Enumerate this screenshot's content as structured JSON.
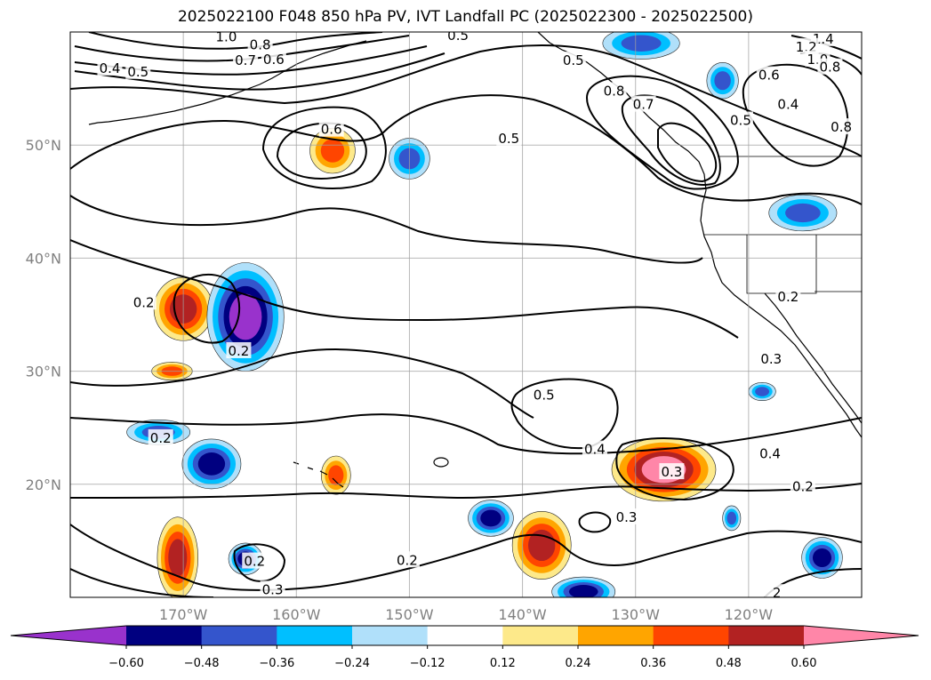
{
  "title": "2025022100 F048 850 hPa PV, IVT Landfall PC (2025022300 - 2025022500)",
  "map": {
    "lon_range": [
      -180,
      -110
    ],
    "lat_range": [
      10,
      60
    ],
    "lon_ticks": [
      {
        "lon": -170,
        "label": "170°W"
      },
      {
        "lon": -160,
        "label": "160°W"
      },
      {
        "lon": -150,
        "label": "150°W"
      },
      {
        "lon": -140,
        "label": "140°W"
      },
      {
        "lon": -130,
        "label": "130°W"
      },
      {
        "lon": -120,
        "label": "120°W"
      }
    ],
    "lat_ticks": [
      {
        "lat": 50,
        "label": "50°N"
      },
      {
        "lat": 40,
        "label": "40°N"
      },
      {
        "lat": 30,
        "label": "30°N"
      },
      {
        "lat": 20,
        "label": "20°N"
      }
    ],
    "gridlines": true
  },
  "colorbar": {
    "levels": [
      "-0.60",
      "-0.48",
      "-0.36",
      "-0.24",
      "-0.12",
      "0.12",
      "0.24",
      "0.36",
      "0.48",
      "0.60"
    ],
    "colors": [
      "#9932cc",
      "#000080",
      "#3455cc",
      "#00bfff",
      "#b0e0fa",
      "#ffffff",
      "#fde98a",
      "#ffa500",
      "#ff4500",
      "#b22222",
      "#ff86a8"
    ],
    "extend": "both"
  },
  "contour_labels": [
    {
      "text": "1.0",
      "lon": -166.2,
      "lat": 59.5
    },
    {
      "text": "0.8",
      "lon": -163.2,
      "lat": 58.8
    },
    {
      "text": "0.7",
      "lon": -164.5,
      "lat": 57.4
    },
    {
      "text": "0.6",
      "lon": -162.0,
      "lat": 57.5
    },
    {
      "text": "0.4",
      "lon": -176.5,
      "lat": 56.7
    },
    {
      "text": "0.5",
      "lon": -174.0,
      "lat": 56.4
    },
    {
      "text": "0.5",
      "lon": -145.7,
      "lat": 59.6
    },
    {
      "text": "0.6",
      "lon": -156.9,
      "lat": 51.3
    },
    {
      "text": "0.5",
      "lon": -135.5,
      "lat": 57.4
    },
    {
      "text": "0.8",
      "lon": -131.9,
      "lat": 54.7
    },
    {
      "text": "0.7",
      "lon": -129.3,
      "lat": 53.5
    },
    {
      "text": "0.5",
      "lon": -141.2,
      "lat": 50.5
    },
    {
      "text": "1.4",
      "lon": -113.4,
      "lat": 59.3
    },
    {
      "text": "1.2",
      "lon": -114.9,
      "lat": 58.6
    },
    {
      "text": "1.0",
      "lon": -113.9,
      "lat": 57.5
    },
    {
      "text": "0.8",
      "lon": -112.8,
      "lat": 56.8
    },
    {
      "text": "0.6",
      "lon": -118.2,
      "lat": 56.1
    },
    {
      "text": "0.4",
      "lon": -116.5,
      "lat": 53.5
    },
    {
      "text": "0.5",
      "lon": -120.7,
      "lat": 52.1
    },
    {
      "text": "0.8",
      "lon": -111.8,
      "lat": 51.5
    },
    {
      "text": "0.2",
      "lon": -116.5,
      "lat": 36.5
    },
    {
      "text": "0.3",
      "lon": -118.0,
      "lat": 31.0
    },
    {
      "text": "0.2",
      "lon": -173.5,
      "lat": 36.0
    },
    {
      "text": "0.2",
      "lon": -165.1,
      "lat": 31.7
    },
    {
      "text": "0.5",
      "lon": -138.1,
      "lat": 27.8
    },
    {
      "text": "0.4",
      "lon": -133.6,
      "lat": 23.0
    },
    {
      "text": "0.3",
      "lon": -126.8,
      "lat": 21.0
    },
    {
      "text": "0.4",
      "lon": -118.1,
      "lat": 22.6
    },
    {
      "text": "0.2",
      "lon": -172.0,
      "lat": 24.0
    },
    {
      "text": "0.2",
      "lon": -115.2,
      "lat": 19.7
    },
    {
      "text": "0.3",
      "lon": -130.8,
      "lat": 17.0
    },
    {
      "text": "0.2",
      "lon": -150.2,
      "lat": 13.2
    },
    {
      "text": "0.2",
      "lon": -163.7,
      "lat": 13.1
    },
    {
      "text": "0.3",
      "lon": -162.1,
      "lat": 10.6
    },
    {
      "text": "2",
      "lon": -117.5,
      "lat": 10.3
    }
  ],
  "shaded_regions": [
    {
      "name": "pv-positive-center-pacific-north",
      "value": 0.36,
      "lon": -156.8,
      "lat": 49.5,
      "rlon": 2.0,
      "rlat": 2.0
    },
    {
      "name": "pv-negative-south-of-alaska",
      "value": -0.36,
      "lon": -150.0,
      "lat": 48.8,
      "rlon": 1.8,
      "rlat": 1.8
    },
    {
      "name": "pv-positive-west-35n",
      "value": 0.48,
      "lon": -170.0,
      "lat": 35.5,
      "rlon": 2.6,
      "rlat": 2.8
    },
    {
      "name": "pv-negative-west-35n",
      "value": -0.6,
      "lon": -164.5,
      "lat": 34.8,
      "rlon": 3.4,
      "rlat": 4.8
    },
    {
      "name": "pv-positive-west-30n",
      "value": 0.36,
      "lon": -171.0,
      "lat": 30.0,
      "rlon": 1.8,
      "rlat": 0.8
    },
    {
      "name": "pv-negative-west-24n",
      "value": -0.36,
      "lon": -172.2,
      "lat": 24.6,
      "rlon": 2.8,
      "rlat": 1.1
    },
    {
      "name": "pv-negative-west-21n",
      "value": -0.48,
      "lon": -167.5,
      "lat": 21.8,
      "rlon": 2.6,
      "rlat": 2.2
    },
    {
      "name": "pv-positive-hawaii",
      "value": 0.36,
      "lon": -156.5,
      "lat": 20.8,
      "rlon": 1.3,
      "rlat": 1.7
    },
    {
      "name": "pv-positive-southwest-16n",
      "value": 0.48,
      "lon": -170.5,
      "lat": 13.5,
      "rlon": 1.8,
      "rlat": 3.6
    },
    {
      "name": "pv-negative-southwest-13n",
      "value": -0.48,
      "lon": -164.5,
      "lat": 13.4,
      "rlon": 1.5,
      "rlat": 1.4
    },
    {
      "name": "pv-negative-center-south-17n",
      "value": -0.48,
      "lon": -142.8,
      "lat": 17.0,
      "rlon": 2.0,
      "rlat": 1.6
    },
    {
      "name": "pv-positive-center-south-15n",
      "value": 0.48,
      "lon": -138.3,
      "lat": 14.6,
      "rlon": 2.6,
      "rlat": 3.0
    },
    {
      "name": "pv-negative-center-south-10n",
      "value": -0.48,
      "lon": -134.6,
      "lat": 10.5,
      "rlon": 2.8,
      "rlat": 1.3
    },
    {
      "name": "pv-positive-east-21n",
      "value": 0.6,
      "lon": -127.5,
      "lat": 21.3,
      "rlon": 4.6,
      "rlat": 2.8
    },
    {
      "name": "pv-negative-east-13n",
      "value": -0.48,
      "lon": -113.5,
      "lat": 13.5,
      "rlon": 1.8,
      "rlat": 1.8
    },
    {
      "name": "pv-negative-west-coast-44n",
      "value": -0.36,
      "lon": -115.2,
      "lat": 44.0,
      "rlon": 3.0,
      "rlat": 1.6
    },
    {
      "name": "pv-negative-alaska-coast",
      "value": -0.36,
      "lon": -129.5,
      "lat": 59.0,
      "rlon": 3.4,
      "rlat": 1.4
    },
    {
      "name": "pv-negative-bc-56n",
      "value": -0.36,
      "lon": -122.3,
      "lat": 55.7,
      "rlon": 1.4,
      "rlat": 1.6
    },
    {
      "name": "pv-negative-mexico-coast",
      "value": -0.36,
      "lon": -118.8,
      "lat": 28.2,
      "rlon": 1.2,
      "rlat": 0.8
    },
    {
      "name": "pv-negative-east-16n",
      "value": -0.36,
      "lon": -121.5,
      "lat": 17.0,
      "rlon": 0.8,
      "rlat": 1.1
    }
  ]
}
